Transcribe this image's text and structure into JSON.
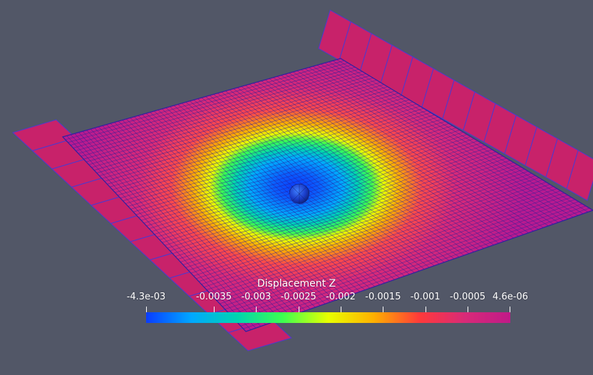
{
  "colors": {
    "background": "#525767",
    "wire": "#2a1f9a",
    "pad": "#c8226a",
    "pad_edge": "#4a3ad0",
    "colormap": [
      "#0a3cff",
      "#00a8ff",
      "#00d4b0",
      "#3cff50",
      "#e8ff00",
      "#ffb000",
      "#ff3a3a",
      "#d82a78",
      "#c01a88"
    ]
  },
  "colorbar": {
    "title": "Displacement Z",
    "min_label": "-4.3e-03",
    "max_label": "4.6e-06",
    "min": -0.0043,
    "max": 4.6e-06,
    "ticks": [
      {
        "label": "-0.0035",
        "value": -0.0035
      },
      {
        "label": "-0.003",
        "value": -0.003
      },
      {
        "label": "-0.0025",
        "value": -0.0025
      },
      {
        "label": "-0.002",
        "value": -0.002
      },
      {
        "label": "-0.0015",
        "value": -0.0015
      },
      {
        "label": "-0.001",
        "value": -0.001
      },
      {
        "label": "-0.0005",
        "value": -0.0005
      }
    ]
  },
  "scene": {
    "object_icons": [
      "wire-mesh-plate",
      "sphere",
      "support-pads"
    ]
  }
}
